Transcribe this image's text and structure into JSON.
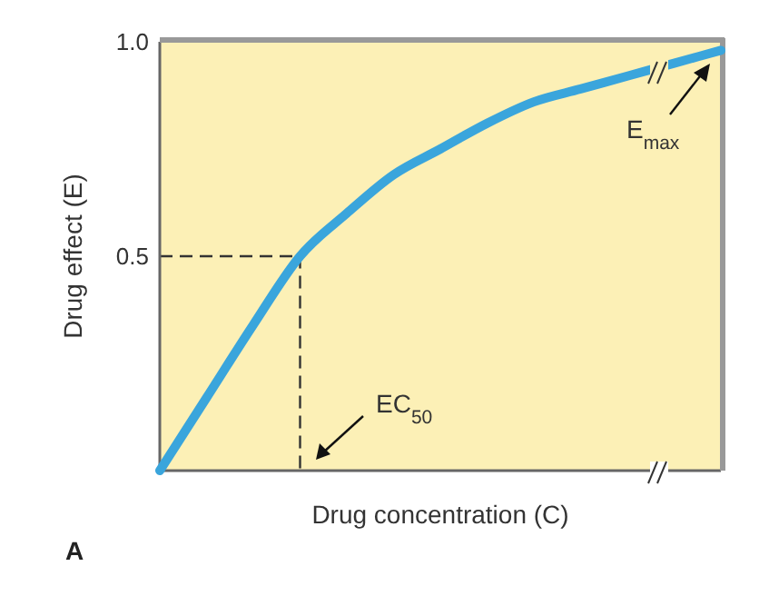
{
  "chart_data": {
    "type": "line",
    "xlabel": "Drug concentration (C)",
    "ylabel": "Drug effect (E)",
    "categories": [
      null,
      null,
      null,
      null,
      null,
      null,
      null,
      null,
      null,
      null,
      null,
      null,
      null
    ],
    "series": [
      {
        "color": "#3aa5dc",
        "values": [
          0,
          0.17,
          0.34,
          0.5,
          0.6,
          0.69,
          0.75,
          0.81,
          0.86,
          0.89,
          0.92,
          0.95,
          0.98
        ]
      }
    ],
    "ylim": [
      0,
      1
    ],
    "yticks": [
      0.5,
      {
        "value": 1,
        "label": "1.0"
      }
    ],
    "tick_labels": "y",
    "grid": false,
    "marker": "none",
    "line_style": "solid",
    "ref_lines": [
      {
        "axis": "y",
        "value": 0.5,
        "line_style": "dashed",
        "color": "#333333"
      }
    ],
    "annotations": [
      "EC$_{50}$",
      "E$_{max}$",
      "A"
    ]
  }
}
